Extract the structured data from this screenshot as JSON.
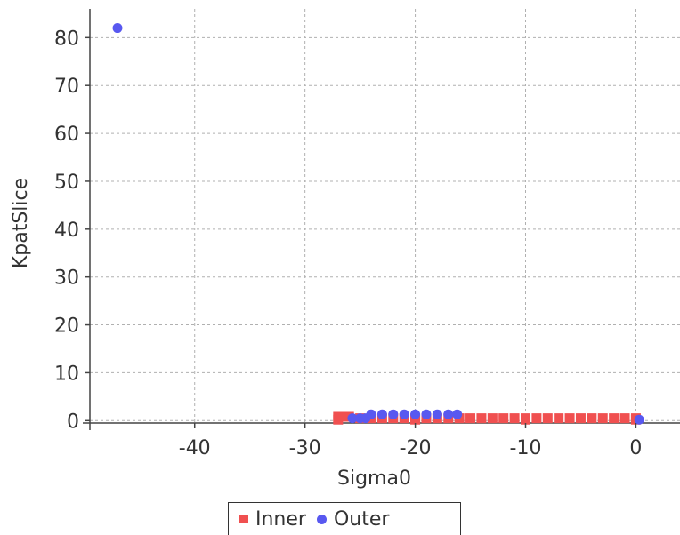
{
  "chart_data": {
    "type": "scatter",
    "title": "",
    "xlabel": "Sigma0",
    "ylabel": "KpatSlice",
    "xlim": [
      -49.5,
      4
    ],
    "ylim": [
      -0.5,
      86
    ],
    "xticks": [
      -40,
      -30,
      -20,
      -10,
      0
    ],
    "yticks": [
      0,
      10,
      20,
      30,
      40,
      50,
      60,
      70,
      80
    ],
    "grid": true,
    "legend_position": "bottom",
    "series": [
      {
        "name": "Inner",
        "marker": "square",
        "color": "#f05050",
        "points": [
          [
            -27,
            0.8
          ],
          [
            -26.5,
            0.8
          ],
          [
            -26,
            0.8
          ],
          [
            -25,
            0.5
          ],
          [
            -24,
            0.5
          ],
          [
            -23,
            0.5
          ],
          [
            -22,
            0.5
          ],
          [
            -21,
            0.5
          ],
          [
            -20,
            0.5
          ],
          [
            -19,
            0.5
          ],
          [
            -18,
            0.5
          ],
          [
            -17,
            0.5
          ],
          [
            -16,
            0.5
          ],
          [
            -15,
            0.5
          ],
          [
            -14,
            0.5
          ],
          [
            -13,
            0.5
          ],
          [
            -12,
            0.5
          ],
          [
            -11,
            0.5
          ],
          [
            -10,
            0.5
          ],
          [
            -9,
            0.5
          ],
          [
            -8,
            0.5
          ],
          [
            -7,
            0.5
          ],
          [
            -6,
            0.5
          ],
          [
            -5,
            0.5
          ],
          [
            -4,
            0.5
          ],
          [
            -3,
            0.5
          ],
          [
            -2,
            0.5
          ],
          [
            -1,
            0.5
          ],
          [
            0,
            0.5
          ],
          [
            -27,
            0.2
          ],
          [
            -20,
            0.2
          ],
          [
            -10,
            0.2
          ],
          [
            0,
            0.2
          ]
        ]
      },
      {
        "name": "Outer",
        "marker": "circle",
        "color": "#5858f0",
        "points": [
          [
            -47,
            82
          ],
          [
            -25.7,
            0.5
          ],
          [
            -25,
            0.5
          ],
          [
            -24.5,
            0.5
          ],
          [
            -24,
            1.3
          ],
          [
            -23,
            1.3
          ],
          [
            -22,
            1.3
          ],
          [
            -21,
            1.3
          ],
          [
            -20,
            1.3
          ],
          [
            -19,
            1.3
          ],
          [
            -18,
            1.3
          ],
          [
            -17,
            1.3
          ],
          [
            -16.2,
            1.3
          ],
          [
            0.3,
            0.2
          ]
        ]
      }
    ]
  }
}
